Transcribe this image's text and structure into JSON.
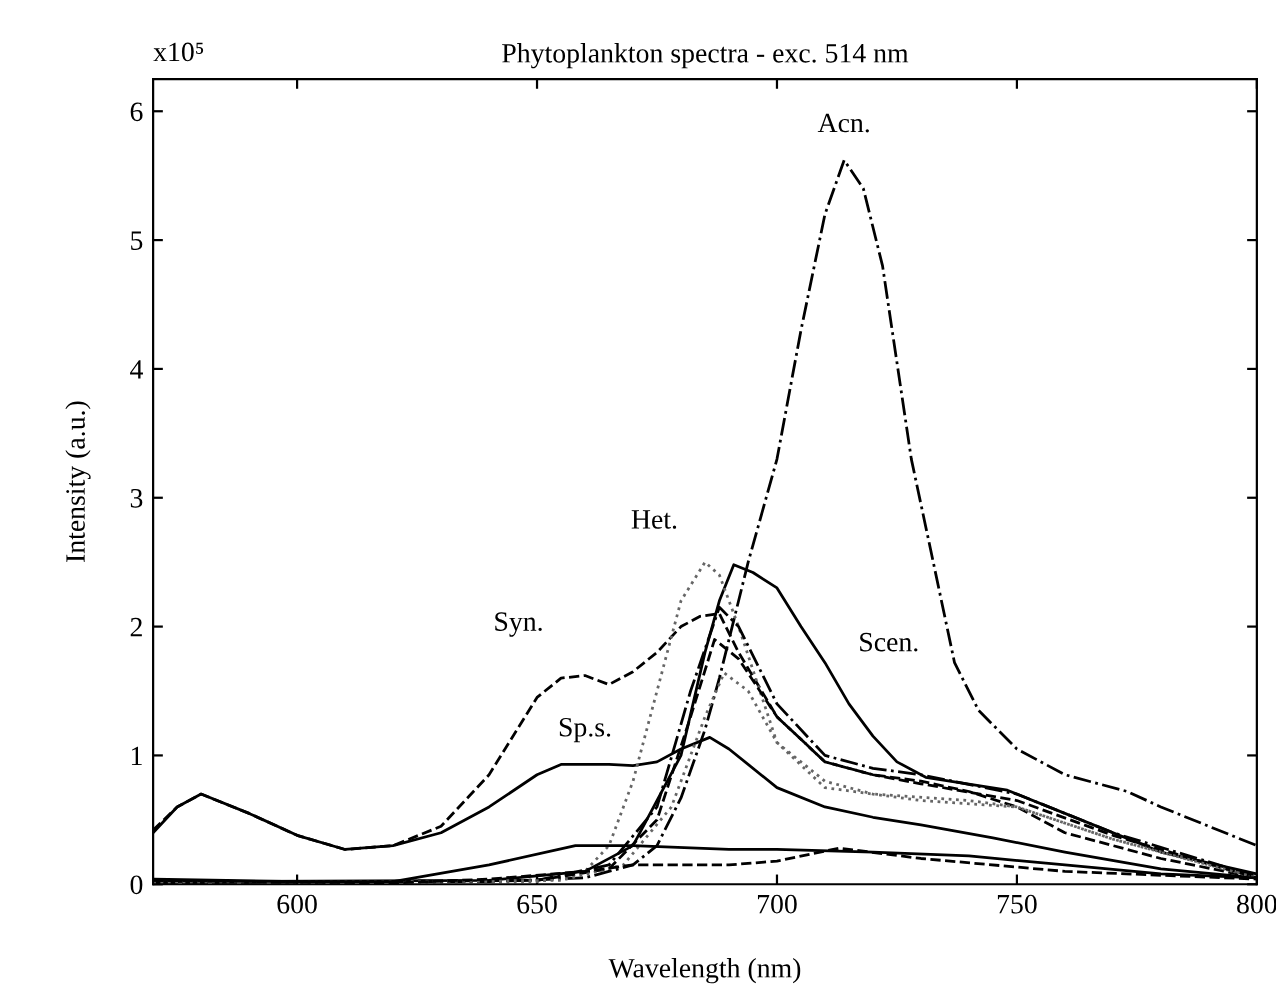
{
  "chart_data": {
    "type": "line",
    "title": "Phytoplankton spectra - exc. 514 nm",
    "xlabel": "Wavelength (nm)",
    "ylabel": "Intensity (a.u.)",
    "xlim": [
      570,
      800
    ],
    "xticks": [
      600,
      650,
      700,
      750,
      800
    ],
    "ylim": [
      0,
      6.25
    ],
    "yticks": [
      0,
      1,
      2,
      3,
      4,
      5,
      6
    ],
    "grid": false,
    "legend": false,
    "annotations": [
      "x10⁵",
      {
        "text": "Acn.",
        "x": 714,
        "y": 5.62
      },
      {
        "text": "Het.",
        "x": 684,
        "y": 2.5
      },
      {
        "text": "Syn.",
        "x": 656,
        "y": 1.62
      },
      {
        "text": "Sp.s.",
        "x": 660,
        "y": 0.93
      },
      {
        "text": "Scen.",
        "x": 710,
        "y": 1.72
      }
    ],
    "series": [
      {
        "color": "#000000",
        "line_style": "dashdot",
        "x": [
          570,
          640,
          660,
          670,
          675,
          680,
          685,
          688,
          694,
          700,
          705,
          710,
          714,
          718,
          722,
          728,
          732,
          737,
          742,
          750,
          760,
          773,
          780,
          790,
          800
        ],
        "values": [
          0.02,
          0.02,
          0.05,
          0.15,
          0.3,
          0.67,
          1.2,
          1.6,
          2.5,
          3.3,
          4.3,
          5.2,
          5.62,
          5.4,
          4.8,
          3.3,
          2.6,
          1.72,
          1.35,
          1.05,
          0.85,
          0.72,
          0.6,
          0.45,
          0.3
        ]
      },
      {
        "color": "#000000",
        "line_style": "dashed",
        "x": [
          570,
          575,
          580,
          590,
          600,
          610,
          620,
          630,
          640,
          650,
          655,
          660,
          665,
          670,
          675,
          680,
          684,
          688,
          692,
          700,
          710,
          720,
          730,
          740,
          750,
          760,
          780,
          800
        ],
        "values": [
          0.42,
          0.6,
          0.7,
          0.55,
          0.38,
          0.27,
          0.3,
          0.45,
          0.85,
          1.45,
          1.6,
          1.62,
          1.55,
          1.65,
          1.8,
          2.0,
          2.08,
          2.1,
          1.8,
          1.3,
          0.95,
          0.85,
          0.8,
          0.72,
          0.6,
          0.4,
          0.2,
          0.05
        ]
      },
      {
        "color": "#000000",
        "line_style": "solid",
        "x": [
          570,
          575,
          580,
          590,
          600,
          610,
          620,
          630,
          640,
          650,
          655,
          665,
          670,
          675,
          680,
          686,
          690,
          700,
          710,
          720,
          730,
          745,
          760,
          780,
          800
        ],
        "values": [
          0.4,
          0.6,
          0.7,
          0.55,
          0.38,
          0.27,
          0.3,
          0.4,
          0.6,
          0.85,
          0.93,
          0.93,
          0.92,
          0.95,
          1.05,
          1.14,
          1.05,
          0.75,
          0.6,
          0.52,
          0.46,
          0.36,
          0.25,
          0.12,
          0.05
        ]
      },
      {
        "color": "#000000",
        "line_style": "solid",
        "x": [
          570,
          640,
          660,
          670,
          680,
          685,
          688,
          691,
          695,
          700,
          705,
          710,
          715,
          720,
          725,
          731,
          748,
          760,
          780,
          800
        ],
        "values": [
          0.02,
          0.03,
          0.1,
          0.3,
          1.0,
          1.8,
          2.2,
          2.48,
          2.42,
          2.3,
          2.0,
          1.72,
          1.4,
          1.15,
          0.95,
          0.83,
          0.73,
          0.55,
          0.25,
          0.08
        ]
      },
      {
        "color": "#666666",
        "line_style": "dotted",
        "x": [
          570,
          650,
          660,
          665,
          670,
          675,
          680,
          685,
          688,
          692,
          700,
          710,
          720,
          740,
          750,
          770,
          800
        ],
        "values": [
          0.01,
          0.02,
          0.1,
          0.3,
          0.8,
          1.5,
          2.2,
          2.5,
          2.4,
          2.0,
          1.1,
          0.75,
          0.7,
          0.65,
          0.6,
          0.35,
          0.05
        ]
      },
      {
        "color": "#000000",
        "line_style": "dashdot",
        "x": [
          570,
          650,
          665,
          675,
          682,
          688,
          692,
          700,
          710,
          720,
          730,
          750,
          770,
          800
        ],
        "values": [
          0.01,
          0.03,
          0.15,
          0.6,
          1.5,
          2.15,
          2.0,
          1.4,
          1.0,
          0.9,
          0.85,
          0.7,
          0.4,
          0.06
        ]
      },
      {
        "color": "#000000",
        "line_style": "dashed",
        "x": [
          570,
          650,
          665,
          675,
          682,
          687,
          692,
          700,
          710,
          720,
          730,
          750,
          770,
          800
        ],
        "values": [
          0.01,
          0.03,
          0.12,
          0.5,
          1.3,
          1.9,
          1.75,
          1.3,
          0.95,
          0.85,
          0.78,
          0.65,
          0.38,
          0.05
        ]
      },
      {
        "color": "#666666",
        "line_style": "dotted",
        "x": [
          570,
          655,
          668,
          678,
          685,
          689,
          694,
          700,
          710,
          720,
          730,
          750,
          770,
          800
        ],
        "values": [
          0.01,
          0.03,
          0.15,
          0.6,
          1.3,
          1.64,
          1.5,
          1.1,
          0.8,
          0.7,
          0.65,
          0.6,
          0.35,
          0.05
        ]
      },
      {
        "color": "#000000",
        "line_style": "solid",
        "x": [
          570,
          600,
          620,
          640,
          658,
          670,
          690,
          700,
          720,
          740,
          760,
          780,
          800
        ],
        "values": [
          0.04,
          0.02,
          0.02,
          0.15,
          0.3,
          0.3,
          0.27,
          0.27,
          0.25,
          0.22,
          0.15,
          0.08,
          0.05
        ]
      },
      {
        "color": "#000000",
        "line_style": "dashed",
        "x": [
          570,
          620,
          640,
          660,
          670,
          690,
          700,
          713,
          730,
          760,
          780,
          800
        ],
        "values": [
          0.03,
          0.01,
          0.04,
          0.1,
          0.15,
          0.15,
          0.18,
          0.28,
          0.2,
          0.1,
          0.07,
          0.04
        ]
      }
    ]
  }
}
